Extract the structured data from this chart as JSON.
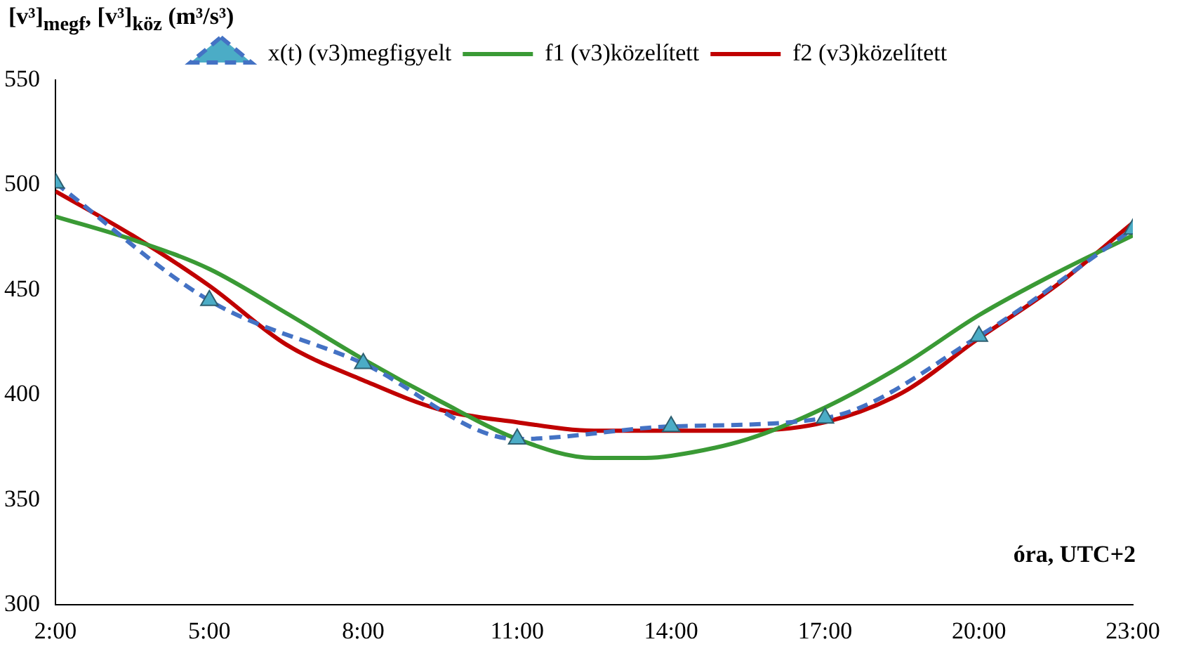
{
  "chart_data": {
    "type": "line",
    "ylabel": "[v³]$_{megf}$, [v³]$_{köz}$ (m³/s³)",
    "xlabel": "óra, UTC+2",
    "xlim": [
      2,
      23
    ],
    "xticks": [
      {
        "value": 2,
        "label": "2:00"
      },
      {
        "value": 5,
        "label": "5:00"
      },
      {
        "value": 8,
        "label": "8:00"
      },
      {
        "value": 11,
        "label": "11:00"
      },
      {
        "value": 14,
        "label": "14:00"
      },
      {
        "value": 17,
        "label": "17:00"
      },
      {
        "value": 20,
        "label": "20:00"
      },
      {
        "value": 23,
        "label": "23:00"
      }
    ],
    "ylim": [
      300,
      550
    ],
    "yticks": [
      300,
      350,
      400,
      450,
      500,
      550
    ],
    "grid": false,
    "legend": "top",
    "series": [
      {
        "name": "x(t) (v3)megfigyelt",
        "color": "#4472c4",
        "marker": "triangle",
        "line_style": "dashed",
        "x": [
          2,
          5,
          8,
          11,
          14,
          17,
          20,
          23
        ],
        "values": [
          501,
          445,
          415,
          379,
          385,
          389,
          428,
          479
        ]
      },
      {
        "name": "f1 (v3)közelített",
        "color": "#3a9a35",
        "marker": "none",
        "line_style": "solid",
        "x": [
          2,
          3.5,
          5,
          6.5,
          8,
          9.5,
          11,
          12.5,
          13.5,
          14,
          15.5,
          17,
          18.5,
          20,
          21.5,
          23
        ],
        "values": [
          485,
          474,
          460,
          439,
          417,
          397,
          379,
          370,
          370,
          371,
          379,
          394,
          414,
          438,
          458,
          476
        ]
      },
      {
        "name": "f2 (v3)közelített",
        "color": "#c00000",
        "marker": "none",
        "line_style": "solid",
        "x": [
          2,
          3.5,
          5,
          6.5,
          8,
          9.5,
          11,
          12.5,
          14,
          15.5,
          17,
          18.5,
          20,
          21.5,
          23
        ],
        "values": [
          497,
          476,
          452,
          424,
          407,
          393,
          387,
          383,
          383,
          383,
          387,
          401,
          427,
          452,
          482
        ]
      }
    ]
  }
}
